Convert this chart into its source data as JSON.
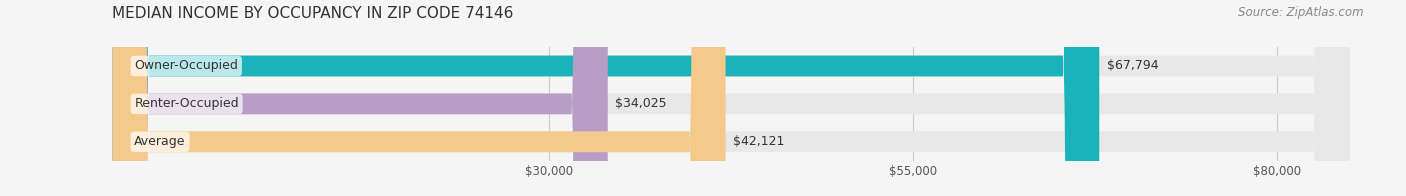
{
  "title": "MEDIAN INCOME BY OCCUPANCY IN ZIP CODE 74146",
  "source": "Source: ZipAtlas.com",
  "categories": [
    "Owner-Occupied",
    "Renter-Occupied",
    "Average"
  ],
  "values": [
    67794,
    34025,
    42121
  ],
  "bar_colors": [
    "#1ab3bc",
    "#b89ec4",
    "#f5c98a"
  ],
  "label_colors": [
    "#ffffff",
    "#555555",
    "#555555"
  ],
  "value_labels": [
    "$67,794",
    "$34,025",
    "$42,121"
  ],
  "tick_values": [
    30000,
    55000,
    80000
  ],
  "tick_labels": [
    "$30,000",
    "$55,000",
    "$80,000"
  ],
  "xlim": [
    0,
    85000
  ],
  "background_color": "#f0f0f0",
  "bar_background_color": "#e8e8e8",
  "title_fontsize": 11,
  "source_fontsize": 8.5,
  "label_fontsize": 9,
  "value_fontsize": 9
}
